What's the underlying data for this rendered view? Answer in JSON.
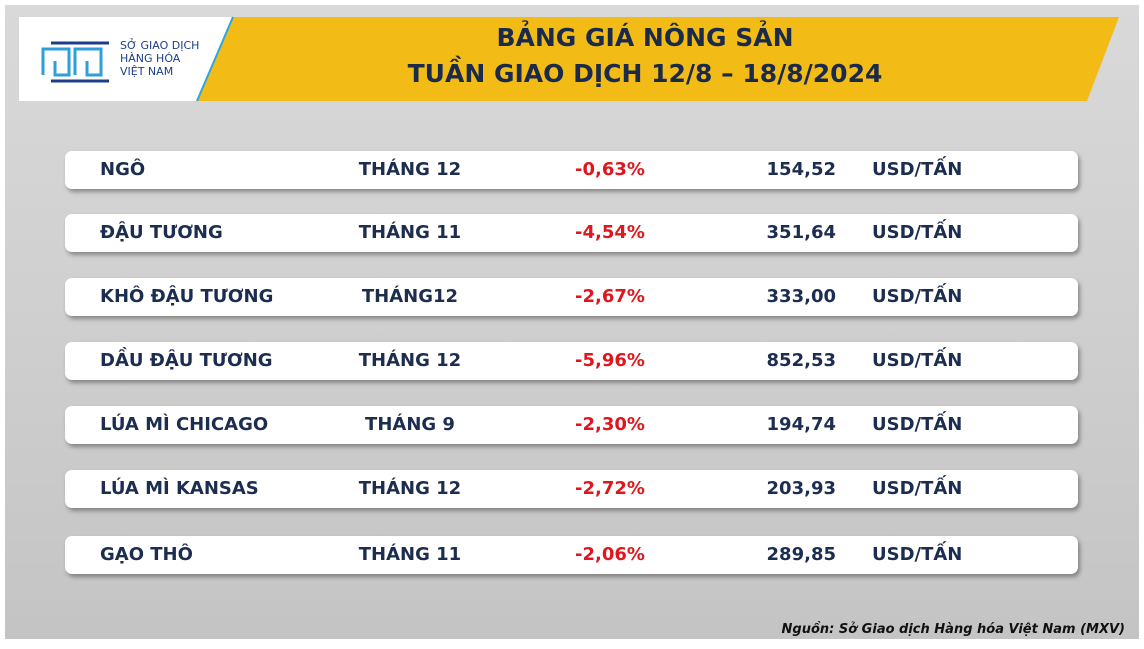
{
  "header": {
    "logo": [
      "SỞ GIAO DỊCH",
      "HÀNG HÓA",
      "VIỆT NAM"
    ],
    "title": [
      "BẢNG GIÁ NÔNG SẢN",
      "TUẦN GIAO DỊCH 12/8 – 18/8/2024"
    ]
  },
  "table": {
    "rows": [
      [
        "NGÔ",
        "THÁNG 12",
        "-0,63%",
        "154,52",
        "USD/TẤN"
      ],
      [
        "ĐẬU TƯƠNG",
        "THÁNG 11",
        "-4,54%",
        "351,64",
        "USD/TẤN"
      ],
      [
        "KHÔ ĐẬU TƯƠNG",
        "THÁNG12",
        "-2,67%",
        "333,00",
        "USD/TẤN"
      ],
      [
        "DẦU ĐẬU TƯƠNG",
        "THÁNG 12",
        "-5,96%",
        "852,53",
        "USD/TẤN"
      ],
      [
        "LÚA MÌ CHICAGO",
        "THÁNG 9",
        "-2,30%",
        "194,74",
        "USD/TẤN"
      ],
      [
        "LÚA MÌ KANSAS",
        "THÁNG 12",
        "-2,72%",
        "203,93",
        "USD/TẤN"
      ],
      [
        "GẠO THÔ",
        "THÁNG 11",
        "-2,06%",
        "289,85",
        "USD/TẤN"
      ]
    ]
  },
  "source": "Nguồn: Sở Giao dịch Hàng hóa Việt Nam (MXV)"
}
